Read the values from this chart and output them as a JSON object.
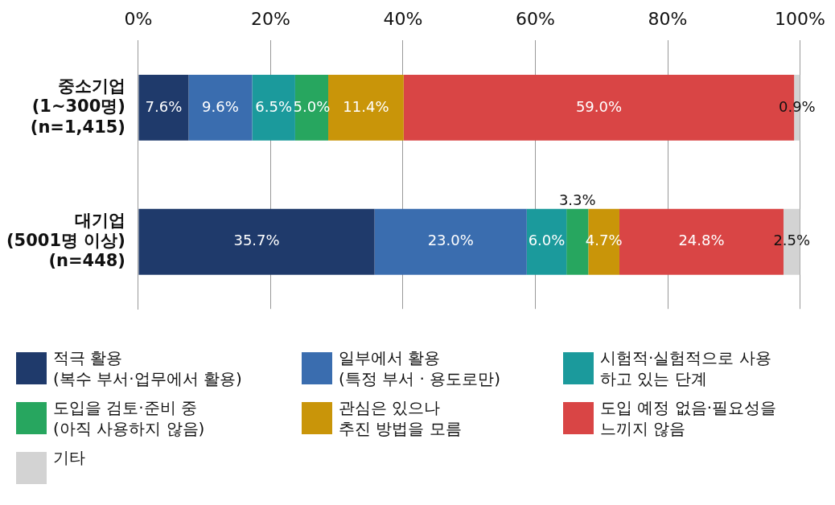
{
  "chart_data": {
    "type": "bar",
    "orientation": "horizontal",
    "stacked": true,
    "categories": [
      "중소기업\n(1~300명)\n(n=1,415)",
      "대기업\n(5001명 이상)\n(n=448)"
    ],
    "series": [
      {
        "name": "적극 활용\n(복수 부서·업무에서 활용)",
        "color": "#1f3a6b",
        "values": [
          7.6,
          35.7
        ],
        "value_labels": [
          "7.6%",
          "35.7%"
        ]
      },
      {
        "name": "일부에서 활용\n(특정 부서 · 용도로만)",
        "color": "#3a6daf",
        "values": [
          9.6,
          23.0
        ],
        "value_labels": [
          "9.6%",
          "23.0%"
        ]
      },
      {
        "name": "시험적·실험적으로 사용\n하고 있는 단계",
        "color": "#1b9a9c",
        "values": [
          6.5,
          6.0
        ],
        "value_labels": [
          "6.5%",
          "6.0%"
        ]
      },
      {
        "name": "도입을 검토·준비 중\n(아직 사용하지 않음)",
        "color": "#27a65f",
        "values": [
          5.0,
          3.3
        ],
        "value_labels": [
          "5.0%",
          "3.3%"
        ]
      },
      {
        "name": "관심은 있으나\n추진 방법을 모름",
        "color": "#c99509",
        "values": [
          11.4,
          4.7
        ],
        "value_labels": [
          "11.4%",
          "4.7%"
        ]
      },
      {
        "name": "도입 예정 없음·필요성을\n느끼지 않음",
        "color": "#d94545",
        "values": [
          59.0,
          24.8
        ],
        "value_labels": [
          "59.0%",
          "24.8%"
        ]
      },
      {
        "name": "기타",
        "color": "#d3d3d3",
        "values": [
          0.9,
          2.5
        ],
        "value_labels": [
          "0.9%",
          "2.5%"
        ]
      }
    ],
    "xlim": [
      0,
      100
    ],
    "xticks": [
      {
        "value": 0,
        "label": "0%"
      },
      {
        "value": 20,
        "label": "20%"
      },
      {
        "value": 40,
        "label": "40%"
      },
      {
        "value": 60,
        "label": "60%"
      },
      {
        "value": 80,
        "label": "80%"
      },
      {
        "value": 100,
        "label": "100%"
      }
    ],
    "grid": "x",
    "legend": "bottom"
  }
}
